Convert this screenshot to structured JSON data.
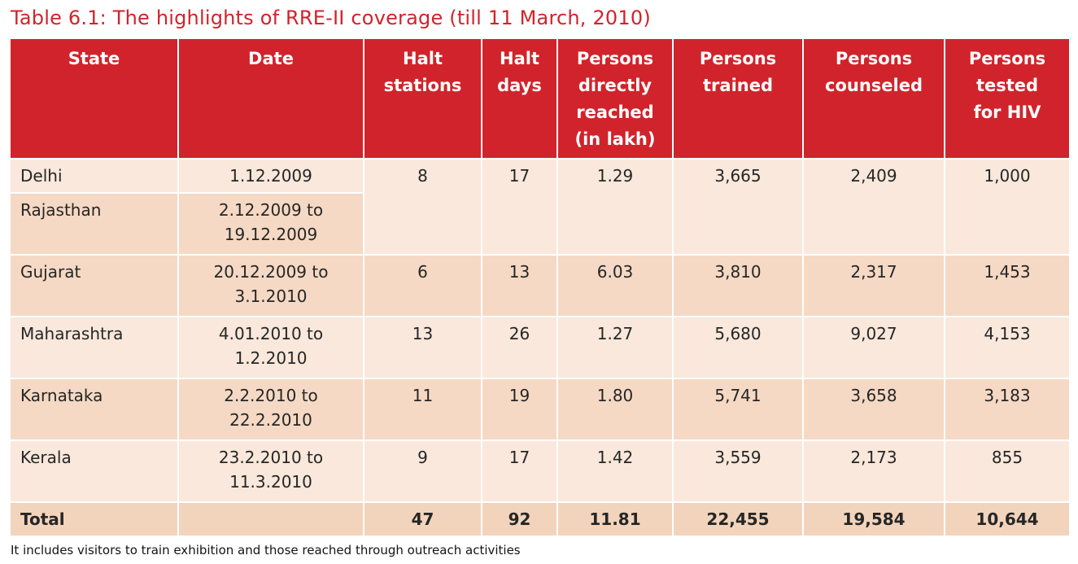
{
  "title": "Table 6.1: The highlights of RRE-II coverage (till 11 March, 2010)",
  "footnote": "It includes visitors to train exhibition and those reached through outreach activities",
  "colors": {
    "accent_red": "#d1232b",
    "header_text": "#ffffff",
    "row_light": "#f9e8db",
    "row_dark": "#f5d9c4",
    "total_row_bg": "#f2d4bc"
  },
  "table": {
    "columns": [
      [
        "State"
      ],
      [
        "Date"
      ],
      [
        "Halt",
        "stations"
      ],
      [
        "Halt",
        "days"
      ],
      [
        "Persons",
        "directly",
        "reached",
        "(in lakh)"
      ],
      [
        "Persons",
        "trained"
      ],
      [
        "Persons",
        "counseled"
      ],
      [
        "Persons",
        "tested",
        "for HIV"
      ]
    ],
    "rows": [
      {
        "state": "Delhi",
        "date_lines": [
          "1.12.2009"
        ],
        "halt_stations": "8",
        "halt_days": "17",
        "persons_reached": "1.29",
        "persons_trained": "3,665",
        "persons_counseled": "2,409",
        "persons_tested": "1,000"
      },
      {
        "state": "Rajasthan",
        "date_lines": [
          "2.12.2009 to",
          "19.12.2009"
        ]
      },
      {
        "state": "Gujarat",
        "date_lines": [
          "20.12.2009 to",
          "3.1.2010"
        ],
        "halt_stations": "6",
        "halt_days": "13",
        "persons_reached": "6.03",
        "persons_trained": "3,810",
        "persons_counseled": "2,317",
        "persons_tested": "1,453"
      },
      {
        "state": "Maharashtra",
        "date_lines": [
          "4.01.2010 to",
          "1.2.2010"
        ],
        "halt_stations": "13",
        "halt_days": "26",
        "persons_reached": "1.27",
        "persons_trained": "5,680",
        "persons_counseled": "9,027",
        "persons_tested": "4,153"
      },
      {
        "state": "Karnataka",
        "date_lines": [
          "2.2.2010 to",
          "22.2.2010"
        ],
        "halt_stations": "11",
        "halt_days": "19",
        "persons_reached": "1.80",
        "persons_trained": "5,741",
        "persons_counseled": "3,658",
        "persons_tested": "3,183"
      },
      {
        "state": "Kerala",
        "date_lines": [
          "23.2.2010 to",
          "11.3.2010"
        ],
        "halt_stations": "9",
        "halt_days": "17",
        "persons_reached": "1.42",
        "persons_trained": "3,559",
        "persons_counseled": "2,173",
        "persons_tested": "855"
      },
      {
        "state": "Total",
        "date_lines": [],
        "halt_stations": "47",
        "halt_days": "92",
        "persons_reached": "11.81",
        "persons_trained": "22,455",
        "persons_counseled": "19,584",
        "persons_tested": "10,644"
      }
    ]
  }
}
